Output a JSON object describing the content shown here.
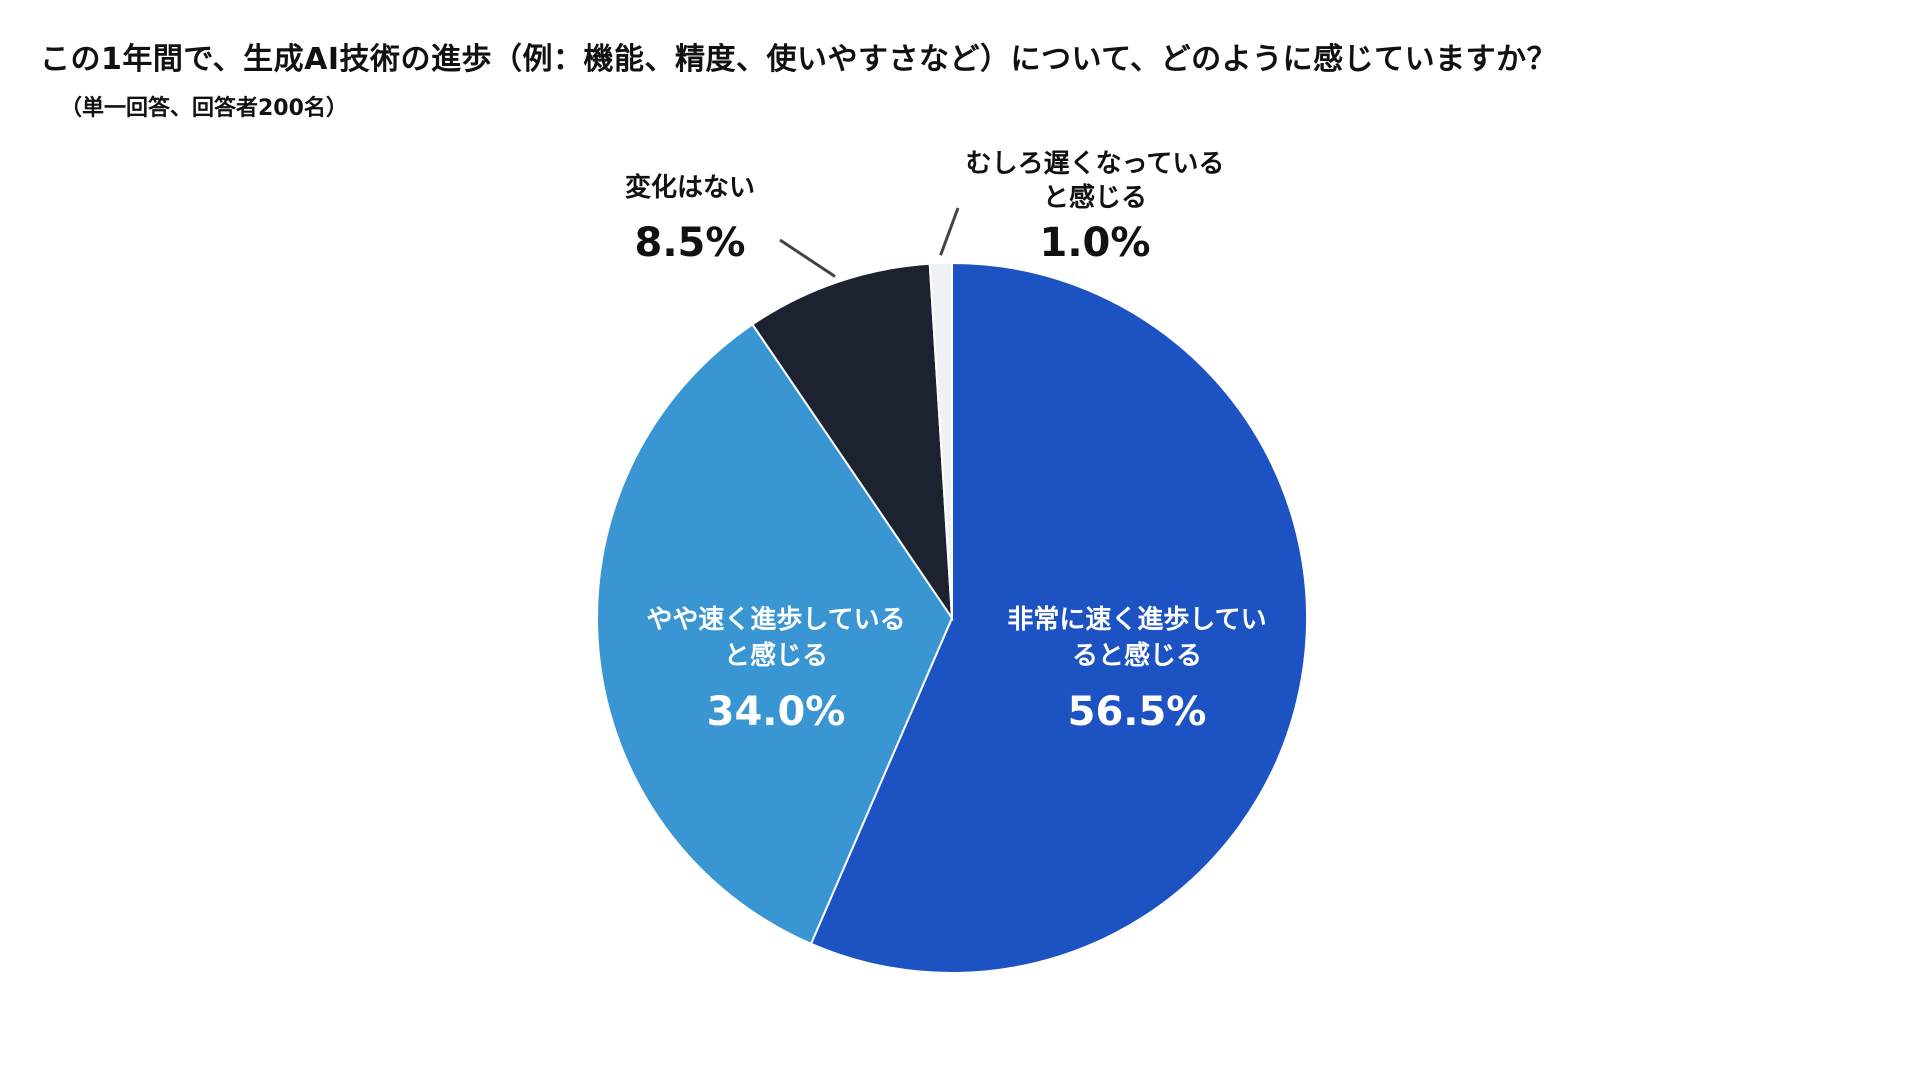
{
  "title": "この1年間で、生成AI技術の進歩（例：機能、精度、使いやすさなど）について、どのように感じていますか？",
  "subtitle": "（単一回答、回答者200名）",
  "colors": {
    "very_fast": "#1c52c2",
    "somewhat_fast": "#3996d2",
    "no_change": "#1c2230",
    "slower": "#eef1f6",
    "leader": "#444444",
    "text_dark": "#111111",
    "text_light": "#ffffff"
  },
  "chart_data": {
    "type": "pie",
    "title": "この1年間で、生成AI技術の進歩（例：機能、精度、使いやすさなど）について、どのように感じていますか？",
    "subtitle": "（単一回答、回答者200名）",
    "unit": "%",
    "start": "12 o'clock, clockwise",
    "slices": [
      {
        "label_lines": [
          "非常に速く進歩してい",
          "ると感じる"
        ],
        "value": 56.5,
        "value_label": "56.5%",
        "color": "#1c52c2",
        "label_position": "inside"
      },
      {
        "label_lines": [
          "やや速く進歩している",
          "と感じる"
        ],
        "value": 34.0,
        "value_label": "34.0%",
        "color": "#3996d2",
        "label_position": "inside"
      },
      {
        "label_lines": [
          "変化はない"
        ],
        "value": 8.5,
        "value_label": "8.5%",
        "color": "#1c2230",
        "label_position": "outside-top-left"
      },
      {
        "label_lines": [
          "むしろ遅くなっている",
          "と感じる"
        ],
        "value": 1.0,
        "value_label": "1.0%",
        "color": "#eef1f6",
        "label_position": "outside-top-right"
      }
    ]
  }
}
